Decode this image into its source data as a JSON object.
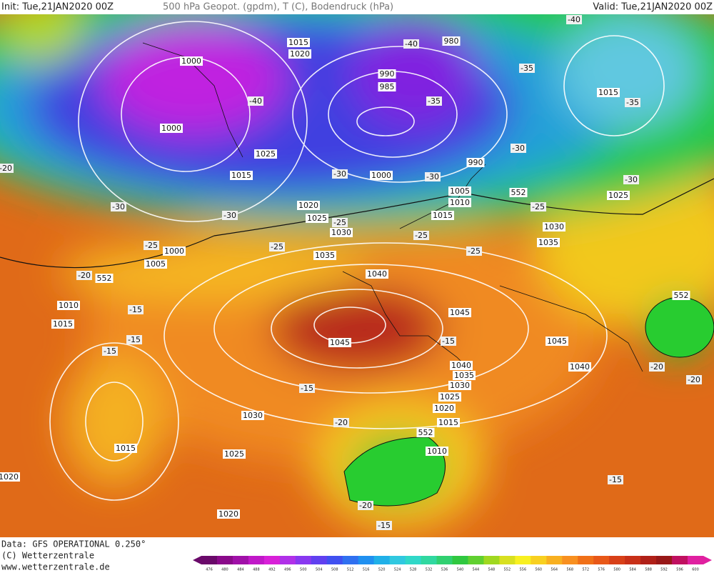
{
  "header": {
    "init": "Init: Tue,21JAN2020 00Z",
    "title": "500 hPa Geopot. (gpdm), T (C), Bodendruck (hPa)",
    "valid": "Valid: Tue,21JAN2020 00Z"
  },
  "map": {
    "isobar_labels": [
      "1015",
      "1020",
      "1000",
      "1000",
      "1025",
      "1015",
      "1020",
      "1025",
      "1030",
      "1035",
      "1040",
      "1045",
      "1045",
      "1045",
      "1040",
      "1040",
      "1035",
      "1030",
      "1025",
      "1020",
      "1015",
      "1010",
      "1030",
      "1025",
      "1020",
      "1015",
      "1020",
      "1015",
      "1010",
      "1005",
      "1000",
      "990",
      "985",
      "980",
      "1000",
      "990",
      "1005",
      "1010",
      "1015",
      "1030",
      "1035",
      "1015",
      "1025"
    ],
    "temp_labels": [
      "-40",
      "-40",
      "-35",
      "-35",
      "-35",
      "-40",
      "-30",
      "-30",
      "-30",
      "-30",
      "-30",
      "-30",
      "-25",
      "-25",
      "-25",
      "-25",
      "-25",
      "-25",
      "-20",
      "-15",
      "-15",
      "-15",
      "-15",
      "-15",
      "-20",
      "-20",
      "-20",
      "-15",
      "-20",
      "-15",
      "-20"
    ],
    "geopot_labels": [
      "552",
      "552",
      "552",
      "552"
    ]
  },
  "colorbar": {
    "labels": [
      "476",
      "480",
      "484",
      "488",
      "492",
      "496",
      "500",
      "504",
      "508",
      "512",
      "516",
      "520",
      "524",
      "528",
      "532",
      "536",
      "540",
      "544",
      "548",
      "552",
      "556",
      "560",
      "564",
      "568",
      "572",
      "576",
      "580",
      "584",
      "588",
      "592",
      "596",
      "600"
    ]
  },
  "footer": {
    "data": "Data: GFS OPERATIONAL 0.250°",
    "copyright": "(C) Wetterzentrale",
    "url": "www.wetterzentrale.de"
  }
}
